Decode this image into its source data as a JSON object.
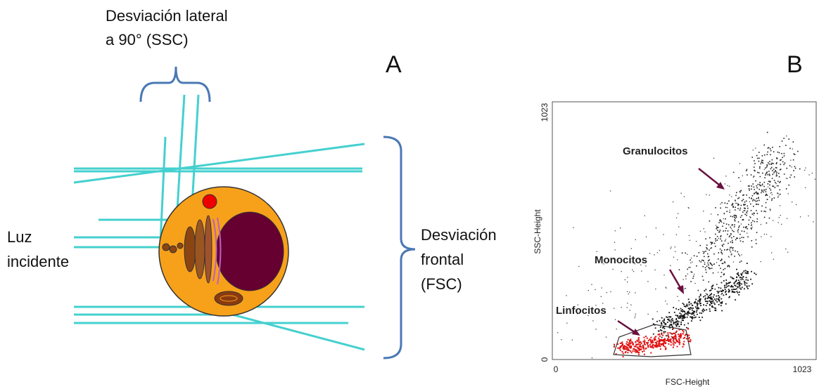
{
  "panel_a": {
    "label": "A",
    "ssc_label": [
      "Desviación lateral",
      "a 90° (SSC)"
    ],
    "incident_label": [
      "Luz",
      "incidente"
    ],
    "fsc_label": [
      "Desviación",
      "frontal",
      "(FSC)"
    ]
  },
  "panel_b": {
    "label": "B",
    "x_axis_title": "FSC-Height",
    "y_axis_title": "SSC-Height",
    "xticks": [
      0,
      1023
    ],
    "yticks": [
      0,
      1023
    ],
    "annotations": [
      "Granulocitos",
      "Monocitos",
      "Linfocitos"
    ]
  }
}
